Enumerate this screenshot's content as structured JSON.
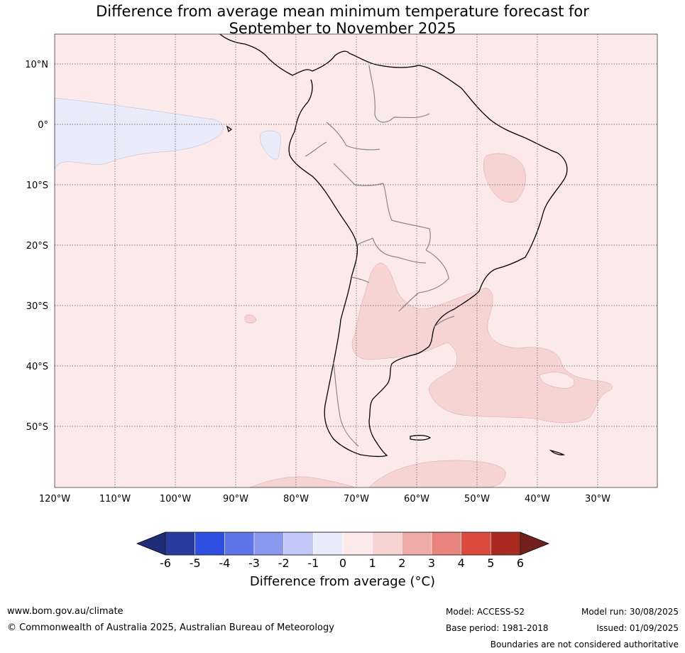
{
  "title": {
    "line1": "Difference from average mean minimum temperature forecast for",
    "line2": "September to November 2025"
  },
  "map": {
    "lat_labels": [
      "10°N",
      "0°",
      "10°S",
      "20°S",
      "30°S",
      "40°S",
      "50°S"
    ],
    "lon_labels": [
      "120°W",
      "110°W",
      "100°W",
      "90°W",
      "80°W",
      "70°W",
      "60°W",
      "50°W",
      "40°W",
      "30°W"
    ],
    "region": "South America",
    "extent": {
      "lon": [
        -120,
        -20
      ],
      "lat": [
        -60,
        15
      ]
    },
    "classes": [
      {
        "range": "-1 to 0",
        "color": "#e9ebfb",
        "areas": [
          "eastern tropical Pacific west of Ecuador",
          "small patch off Ecuador coast"
        ]
      },
      {
        "range": "0 to 1",
        "color": "#fbeae9",
        "areas": [
          "background / most of domain"
        ]
      },
      {
        "range": "1 to 2",
        "color": "#f5d4d2",
        "areas": [
          "north-east Brazil",
          "Argentina, Uruguay and south-west Atlantic",
          "far south Pacific/Atlantic near 58°S"
        ]
      }
    ]
  },
  "colorbar": {
    "ticks": [
      "-6",
      "-5",
      "-4",
      "-3",
      "-2",
      "-1",
      "0",
      "1",
      "2",
      "3",
      "4",
      "5",
      "6"
    ],
    "colors": [
      "#283a9e",
      "#2e4fe0",
      "#5d75e8",
      "#8898ee",
      "#c1c8f5",
      "#e9ebfb",
      "#fbeae9",
      "#f5d4d2",
      "#edaca8",
      "#e8847d",
      "#dc4a3e",
      "#aa2a20"
    ],
    "under_color": "#1f2c78",
    "over_color": "#71201c",
    "label": "Difference from average (°C)"
  },
  "footer": {
    "website": "www.bom.gov.au/climate",
    "copyright": "© Commonwealth of Australia 2025, Australian Bureau of Meteorology",
    "model": "Model: ACCESS-S2",
    "base_period": "Base period: 1981-2018",
    "model_run": "Model run: 30/08/2025",
    "issued": "Issued: 01/09/2025",
    "disclaimer": "Boundaries are not considered authoritative"
  }
}
